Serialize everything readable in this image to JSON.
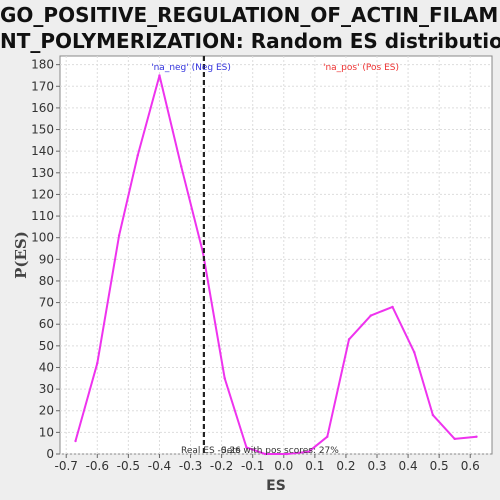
{
  "chart_data": {
    "type": "line",
    "title_lines": [
      "GO_POSITIVE_REGULATION_OF_ACTIN_FILAME",
      "NT_POLYMERIZATION: Random ES distribution"
    ],
    "xlabel": "ES",
    "ylabel": "P(ES)",
    "xlim": [
      -0.72,
      0.67
    ],
    "ylim": [
      0,
      184
    ],
    "x_ticks": [
      -0.7,
      -0.6,
      -0.5,
      -0.4,
      -0.3,
      -0.2,
      -0.1,
      0.0,
      0.1,
      0.2,
      0.3,
      0.4,
      0.5,
      0.6
    ],
    "y_ticks": [
      0,
      10,
      20,
      30,
      40,
      50,
      60,
      70,
      80,
      90,
      100,
      110,
      120,
      130,
      140,
      150,
      160,
      170,
      180
    ],
    "grid": true,
    "series": [
      {
        "color": "#ee33ee",
        "x": [
          -0.67,
          -0.6,
          -0.53,
          -0.47,
          -0.4,
          -0.33,
          -0.26,
          -0.19,
          -0.12,
          -0.06,
          0.01,
          0.08,
          0.14,
          0.21,
          0.28,
          0.35,
          0.42,
          0.48,
          0.55,
          0.62
        ],
        "y": [
          6,
          42,
          101,
          138,
          175,
          133,
          93,
          35,
          3,
          0,
          0,
          1,
          8,
          53,
          64,
          68,
          47,
          18,
          7,
          8
        ]
      }
    ],
    "real_es": -0.257,
    "real_es_color": "#222222",
    "annotations": {
      "neg": {
        "text": "'na_neg' (Neg ES)",
        "color": "#3333dd"
      },
      "pos": {
        "text": "'na_pos' (Pos ES)",
        "color": "#ee3333"
      },
      "real_es_label": "Real ES -0.26",
      "pos_fraction_label": "Sets with pos scores: 27%"
    }
  }
}
